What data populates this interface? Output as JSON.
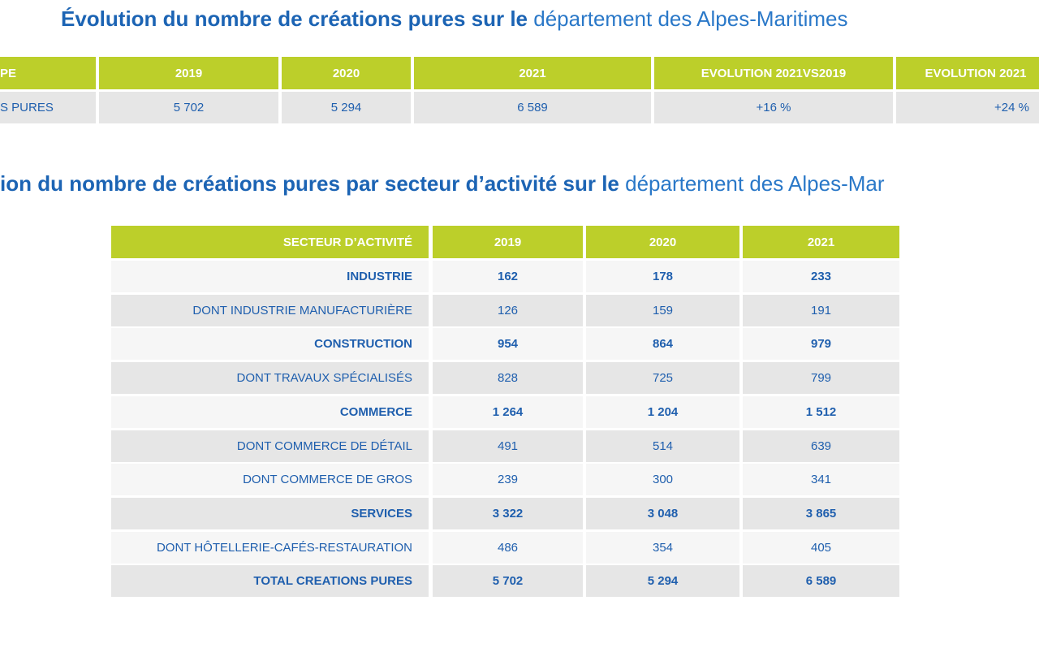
{
  "title1": {
    "bold": "Évolution du nombre de créations pures sur le",
    "light": "département des Alpes-Maritimes"
  },
  "table1": {
    "headers": [
      "PE",
      "2019",
      "2020",
      "2021",
      "EVOLUTION 2021VS2019",
      "EVOLUTION 2021"
    ],
    "rows": [
      [
        "S PURES",
        "5 702",
        "5 294",
        "6 589",
        "+16 %",
        "+24 %"
      ]
    ]
  },
  "title2": {
    "bold": "ion du nombre de créations pures par secteur d’activité sur le",
    "light": "département des Alpes-Mar"
  },
  "table2": {
    "headers": [
      "SECTEUR D’ACTIVITÉ",
      "2019",
      "2020",
      "2021"
    ],
    "rows": [
      {
        "bold": true,
        "cells": [
          "INDUSTRIE",
          "162",
          "178",
          "233"
        ]
      },
      {
        "bold": false,
        "cells": [
          "DONT INDUSTRIE MANUFACTURIÈRE",
          "126",
          "159",
          "191"
        ]
      },
      {
        "bold": true,
        "cells": [
          "CONSTRUCTION",
          "954",
          "864",
          "979"
        ]
      },
      {
        "bold": false,
        "cells": [
          "DONT TRAVAUX SPÉCIALISÉS",
          "828",
          "725",
          "799"
        ]
      },
      {
        "bold": true,
        "cells": [
          "COMMERCE",
          "1 264",
          "1 204",
          "1 512"
        ]
      },
      {
        "bold": false,
        "cells": [
          "DONT COMMERCE DE DÉTAIL",
          "491",
          "514",
          "639"
        ]
      },
      {
        "bold": false,
        "cells": [
          "DONT COMMERCE DE GROS",
          "239",
          "300",
          "341"
        ]
      },
      {
        "bold": true,
        "cells": [
          "SERVICES",
          "3 322",
          "3 048",
          "3 865"
        ]
      },
      {
        "bold": false,
        "cells": [
          "DONT HÔTELLERIE-CAFÉS-RESTAURATION",
          "486",
          "354",
          "405"
        ]
      },
      {
        "bold": true,
        "cells": [
          "TOTAL CREATIONS PURES",
          "5 702",
          "5 294",
          "6 589"
        ]
      }
    ]
  }
}
